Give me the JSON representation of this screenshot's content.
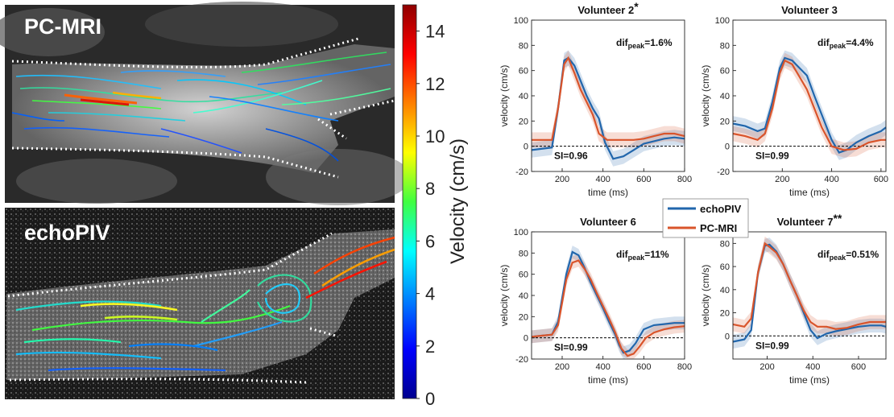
{
  "panels": {
    "pcmri_label": "PC-MRI",
    "echopiv_label": "echoPIV"
  },
  "colorbar": {
    "label": "Velocity (cm/s)",
    "ticks": [
      "0",
      "2",
      "4",
      "6",
      "8",
      "10",
      "12",
      "14"
    ],
    "range": [
      0,
      15
    ],
    "colormap": "jet"
  },
  "legend": {
    "items": [
      {
        "label": "echoPIV",
        "color": "#2166ac"
      },
      {
        "label": "PC-MRI",
        "color": "#d9542b"
      }
    ]
  },
  "chart_data": [
    {
      "type": "line",
      "title": "Volunteer 2",
      "title_mark": "*",
      "xlabel": "time (ms)",
      "ylabel": "velocity (cm/s)",
      "xlim": [
        50,
        800
      ],
      "ylim": [
        -20,
        100
      ],
      "xticks": [
        200,
        400,
        600,
        800
      ],
      "yticks": [
        -20,
        0,
        20,
        40,
        60,
        80,
        100
      ],
      "annotation_dif": "dif",
      "annotation_sub": "peak",
      "annotation_val": "=1.6%",
      "si": "SI=0.96",
      "series": [
        {
          "name": "echoPIV",
          "color": "#2166ac",
          "x": [
            50,
            150,
            180,
            210,
            230,
            260,
            290,
            320,
            350,
            380,
            410,
            450,
            500,
            550,
            600,
            650,
            700,
            750,
            800
          ],
          "y": [
            -3,
            -1,
            30,
            68,
            70,
            64,
            52,
            40,
            30,
            22,
            3,
            -10,
            -8,
            -3,
            2,
            4,
            6,
            7,
            6
          ]
        },
        {
          "name": "PC-MRI",
          "color": "#d9542b",
          "x": [
            50,
            150,
            180,
            210,
            230,
            260,
            290,
            320,
            350,
            380,
            420,
            500,
            550,
            600,
            650,
            700,
            750,
            800
          ],
          "y": [
            5,
            5,
            30,
            65,
            70,
            58,
            45,
            35,
            25,
            10,
            5,
            5,
            5,
            6,
            8,
            10,
            10,
            8
          ]
        }
      ]
    },
    {
      "type": "line",
      "title": "Volunteer 3",
      "title_mark": "",
      "xlabel": "time (ms)",
      "ylabel": "velocity (cm/s)",
      "xlim": [
        0,
        620
      ],
      "ylim": [
        -20,
        100
      ],
      "xticks": [
        200,
        400,
        600
      ],
      "yticks": [
        -20,
        0,
        20,
        40,
        60,
        80,
        100
      ],
      "annotation_dif": "dif",
      "annotation_sub": "peak",
      "annotation_val": "=4.4%",
      "si": "SI=0.99",
      "series": [
        {
          "name": "echoPIV",
          "color": "#2166ac",
          "x": [
            0,
            50,
            100,
            130,
            160,
            190,
            210,
            240,
            270,
            300,
            330,
            360,
            400,
            430,
            460,
            500,
            550,
            600,
            620
          ],
          "y": [
            18,
            16,
            12,
            14,
            35,
            62,
            70,
            68,
            62,
            56,
            40,
            25,
            5,
            -5,
            -3,
            3,
            8,
            12,
            15
          ]
        },
        {
          "name": "PC-MRI",
          "color": "#d9542b",
          "x": [
            0,
            50,
            100,
            130,
            160,
            190,
            210,
            240,
            270,
            300,
            330,
            360,
            400,
            450,
            500,
            550,
            600,
            620
          ],
          "y": [
            10,
            8,
            5,
            10,
            30,
            58,
            68,
            65,
            55,
            45,
            30,
            15,
            0,
            -3,
            -2,
            3,
            5,
            5
          ]
        }
      ]
    },
    {
      "type": "line",
      "title": "Volunteer 6",
      "title_mark": "",
      "xlabel": "time (ms)",
      "ylabel": "velocity (cm/s)",
      "xlim": [
        50,
        800
      ],
      "ylim": [
        -20,
        100
      ],
      "xticks": [
        200,
        400,
        600,
        800
      ],
      "yticks": [
        -20,
        0,
        20,
        40,
        60,
        80,
        100
      ],
      "annotation_dif": "dif",
      "annotation_sub": "peak",
      "annotation_val": "=11%",
      "si": "SI=0.99",
      "series": [
        {
          "name": "echoPIV",
          "color": "#2166ac",
          "x": [
            50,
            100,
            150,
            180,
            220,
            250,
            280,
            310,
            340,
            370,
            400,
            430,
            460,
            480,
            500,
            530,
            560,
            600,
            650,
            700,
            750,
            800
          ],
          "y": [
            1,
            2,
            3,
            15,
            60,
            81,
            78,
            66,
            52,
            40,
            28,
            15,
            3,
            -7,
            -14,
            -12,
            -5,
            8,
            12,
            13,
            14,
            14
          ]
        },
        {
          "name": "PC-MRI",
          "color": "#d9542b",
          "x": [
            50,
            100,
            150,
            180,
            220,
            250,
            280,
            310,
            340,
            370,
            400,
            430,
            460,
            490,
            520,
            550,
            580,
            610,
            650,
            700,
            750,
            800
          ],
          "y": [
            1,
            2,
            3,
            12,
            55,
            71,
            73,
            65,
            55,
            42,
            30,
            18,
            5,
            -10,
            -17,
            -15,
            -8,
            0,
            5,
            8,
            10,
            11
          ]
        }
      ]
    },
    {
      "type": "line",
      "title": "Volunteer 7",
      "title_mark": "**",
      "xlabel": "time (ms)",
      "ylabel": "velocity (cm/s)",
      "xlim": [
        50,
        720
      ],
      "ylim": [
        -20,
        90
      ],
      "xticks": [
        200,
        400,
        600
      ],
      "yticks": [
        0,
        20,
        40,
        60,
        80
      ],
      "annotation_dif": "dif",
      "annotation_sub": "peak",
      "annotation_val": "=0.51%",
      "si": "SI=0.99",
      "series": [
        {
          "name": "echoPIV",
          "color": "#2166ac",
          "x": [
            50,
            100,
            130,
            160,
            190,
            210,
            240,
            270,
            300,
            330,
            360,
            390,
            420,
            460,
            500,
            550,
            600,
            650,
            700,
            720
          ],
          "y": [
            -5,
            -3,
            5,
            55,
            78,
            79,
            73,
            62,
            48,
            35,
            20,
            5,
            -2,
            2,
            4,
            6,
            8,
            9,
            9,
            8
          ]
        },
        {
          "name": "PC-MRI",
          "color": "#d9542b",
          "x": [
            50,
            100,
            130,
            160,
            190,
            210,
            240,
            270,
            300,
            330,
            360,
            390,
            420,
            460,
            500,
            550,
            600,
            650,
            700,
            720
          ],
          "y": [
            10,
            8,
            15,
            55,
            80,
            77,
            72,
            62,
            48,
            35,
            22,
            12,
            8,
            8,
            6,
            7,
            10,
            12,
            12,
            12
          ]
        }
      ]
    }
  ]
}
